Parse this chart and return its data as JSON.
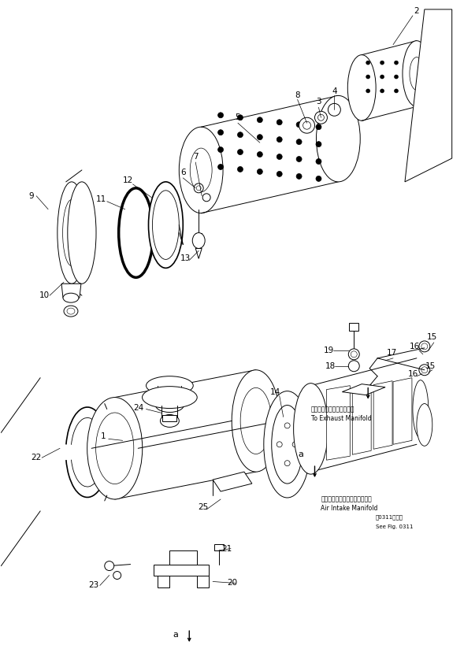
{
  "bg_color": "#ffffff",
  "lc": "#000000",
  "lw": 0.7,
  "fig_w": 5.89,
  "fig_h": 8.33,
  "dpi": 100,
  "text_exhaust_jp": "エキゾーストマニホールヘ",
  "text_exhaust_en": "To Exhaust Manifold",
  "text_intake_jp": "エアーインテークマニホールド",
  "text_intake_en": "Air Intake Manifold",
  "text_fig_jp": "図0311図参照",
  "text_fig_en": "See Fig. 0311"
}
